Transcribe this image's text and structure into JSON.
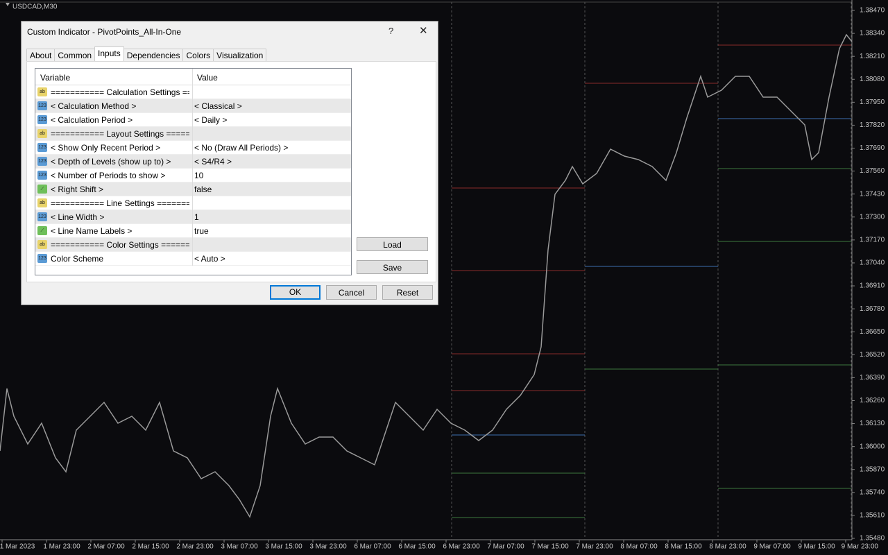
{
  "chart": {
    "symbol": "USDCAD,M30",
    "price_labels": [
      "1.38470",
      "1.38340",
      "1.38210",
      "1.38080",
      "1.37950",
      "1.37820",
      "1.37690",
      "1.37560",
      "1.37430",
      "1.37300",
      "1.37170",
      "1.37040",
      "1.36910",
      "1.36780",
      "1.36650",
      "1.36520",
      "1.36390",
      "1.36260",
      "1.36130",
      "1.36000",
      "1.35870",
      "1.35740",
      "1.35610",
      "1.35480"
    ],
    "time_labels": [
      "1 Mar 2023",
      "1 Mar 23:00",
      "2 Mar 07:00",
      "2 Mar 15:00",
      "2 Mar 23:00",
      "3 Mar 07:00",
      "3 Mar 15:00",
      "3 Mar 23:00",
      "6 Mar 07:00",
      "6 Mar 15:00",
      "6 Mar 23:00",
      "7 Mar 07:00",
      "7 Mar 15:00",
      "7 Mar 23:00",
      "8 Mar 07:00",
      "8 Mar 15:00",
      "8 Mar 23:00",
      "9 Mar 07:00",
      "9 Mar 15:00",
      "9 Mar 23:00"
    ]
  },
  "dialog": {
    "title": "Custom Indicator - PivotPoints_All-In-One",
    "help": "?",
    "tabs": [
      "About",
      "Common",
      "Inputs",
      "Dependencies",
      "Colors",
      "Visualization"
    ],
    "active_tab": 2,
    "table": {
      "headers": [
        "Variable",
        "Value"
      ],
      "rows": [
        {
          "icon": "ab",
          "variable": "=========== Calculation Settings ====...",
          "value": ""
        },
        {
          "icon": "123",
          "variable": "< Calculation Method >",
          "value": "< Classical >"
        },
        {
          "icon": "123",
          "variable": "< Calculation Period >",
          "value": "< Daily >"
        },
        {
          "icon": "ab",
          "variable": "=========== Layout Settings ========...",
          "value": ""
        },
        {
          "icon": "123",
          "variable": "< Show Only Recent Period >",
          "value": "< No (Draw All Periods) >"
        },
        {
          "icon": "123",
          "variable": "< Depth of Levels (show up to) >",
          "value": "< S4/R4 >"
        },
        {
          "icon": "123",
          "variable": "< Number of Periods to show >",
          "value": "10"
        },
        {
          "icon": "bool",
          "variable": "< Right Shift >",
          "value": "false"
        },
        {
          "icon": "ab",
          "variable": "=========== Line Settings ==========...",
          "value": ""
        },
        {
          "icon": "123",
          "variable": "< Line Width >",
          "value": "1"
        },
        {
          "icon": "bool",
          "variable": "< Line Name Labels >",
          "value": "true"
        },
        {
          "icon": "ab",
          "variable": "=========== Color Settings ========...",
          "value": ""
        },
        {
          "icon": "123",
          "variable": "Color Scheme",
          "value": "< Auto >"
        }
      ]
    },
    "side_buttons": [
      "Load",
      "Save"
    ],
    "buttons": [
      "OK",
      "Cancel",
      "Reset"
    ]
  }
}
